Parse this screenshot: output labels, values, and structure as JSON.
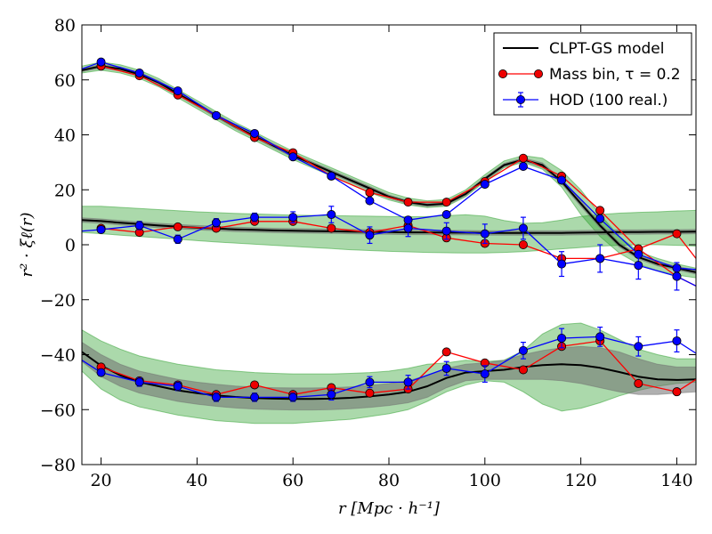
{
  "chart_data": {
    "type": "line",
    "xlabel": "r  [Mpc · h⁻¹]",
    "ylabel": "r² · ξℓ(r)",
    "xlim": [
      16,
      144
    ],
    "ylim": [
      -80,
      80
    ],
    "xticks": [
      20,
      40,
      60,
      80,
      100,
      120,
      140
    ],
    "yticks": [
      -80,
      -60,
      -40,
      -20,
      0,
      20,
      40,
      60,
      80
    ],
    "xtick_labels": [
      "20",
      "40",
      "60",
      "80",
      "100",
      "120",
      "140"
    ],
    "ytick_labels": [
      "−80",
      "−60",
      "−40",
      "−20",
      "0",
      "20",
      "40",
      "60",
      "80"
    ],
    "grid": false,
    "legend_position": "top-right",
    "legend": [
      {
        "key": "model",
        "label": "CLPT-GS model",
        "style": "line",
        "color": "#000000"
      },
      {
        "key": "mass",
        "label": "Mass bin, τ = 0.2",
        "style": "marker-line",
        "color": "#ff0000"
      },
      {
        "key": "hod",
        "label": "HOD (100 real.)",
        "style": "errorbar",
        "color": "#0000ff"
      }
    ],
    "colors": {
      "model": "#000000",
      "mass": "#ff0000",
      "mass_marker": "#ee0000",
      "hod": "#0000ff",
      "band_green": "#2ca02c",
      "band_grey": "#707070"
    },
    "model": {
      "x": [
        16,
        20,
        24,
        28,
        32,
        36,
        40,
        44,
        48,
        52,
        56,
        60,
        64,
        68,
        72,
        76,
        80,
        84,
        88,
        92,
        96,
        100,
        104,
        108,
        112,
        116,
        120,
        124,
        128,
        132,
        136,
        140,
        144
      ],
      "monopole": [
        63.5,
        65,
        64,
        62,
        59,
        55,
        51,
        47,
        43,
        39.5,
        36,
        32.5,
        29.5,
        26.5,
        23.5,
        20.5,
        17.5,
        15.5,
        14.5,
        15,
        18.5,
        24,
        29,
        31,
        29,
        23,
        15,
        7,
        0,
        -4.5,
        -7,
        -8.5,
        -10
      ],
      "quadrupole": [
        9,
        8.6,
        8,
        7.5,
        7,
        6.6,
        6.2,
        5.9,
        5.6,
        5.4,
        5.2,
        5.1,
        5,
        4.9,
        4.8,
        4.7,
        4.6,
        4.5,
        4.5,
        4.4,
        4.4,
        4.3,
        4.3,
        4.3,
        4.3,
        4.3,
        4.4,
        4.5,
        4.6,
        4.6,
        4.7,
        4.7,
        4.8
      ],
      "hexadecapole": [
        -39,
        -44,
        -47.5,
        -50,
        -51.5,
        -53,
        -54,
        -54.8,
        -55.4,
        -55.8,
        -56,
        -56.1,
        -56.1,
        -56,
        -55.7,
        -55.2,
        -54.5,
        -53.5,
        -51.5,
        -48.5,
        -46.5,
        -46,
        -45.5,
        -44.5,
        -43.8,
        -43.5,
        -43.8,
        -44.8,
        -46.3,
        -48,
        -49,
        -49.2,
        -49
      ]
    },
    "bands": {
      "green": {
        "monopole": {
          "x": [
            16,
            20,
            24,
            28,
            32,
            36,
            40,
            44,
            48,
            52,
            56,
            60,
            64,
            68,
            72,
            76,
            80,
            84,
            88,
            92,
            96,
            100,
            104,
            108,
            112,
            116,
            120,
            124,
            128,
            132,
            136,
            140,
            144
          ],
          "low": [
            62.5,
            63.5,
            62.5,
            60.5,
            57.5,
            53.5,
            49.5,
            45.5,
            41.5,
            38,
            34.5,
            31,
            28,
            25,
            22,
            19,
            16.3,
            14.5,
            13.5,
            14,
            17.5,
            23,
            28,
            30,
            27.5,
            21,
            11,
            3,
            -3,
            -7,
            -9.5,
            -11,
            -12
          ],
          "high": [
            65,
            66.5,
            65.5,
            63.5,
            60.5,
            56.5,
            52.5,
            48.5,
            44.5,
            41,
            37.5,
            34,
            31,
            28,
            25,
            22,
            19,
            17,
            16,
            16.5,
            20,
            25.5,
            30.5,
            32.5,
            31.5,
            27,
            20,
            11,
            3,
            -2.5,
            -5,
            -7,
            -8.5
          ]
        },
        "quadrupole": {
          "x": [
            16,
            20,
            24,
            28,
            32,
            36,
            40,
            44,
            48,
            52,
            56,
            60,
            64,
            68,
            72,
            76,
            80,
            84,
            88,
            92,
            96,
            100,
            104,
            108,
            112,
            116,
            120,
            124,
            128,
            132,
            136,
            140,
            144
          ],
          "low": [
            4.5,
            4,
            3.5,
            3,
            2.5,
            2,
            1.5,
            1,
            0.6,
            0.2,
            -0.2,
            -0.6,
            -1,
            -1.4,
            -1.8,
            -2.1,
            -2.4,
            -2.6,
            -2.8,
            -2.9,
            -3,
            -3,
            -2.8,
            -2.5,
            -2,
            -1.5,
            -1,
            -0.5,
            -0.2,
            0,
            0,
            -0.2,
            -0.5
          ],
          "high": [
            14,
            14,
            13.6,
            13.2,
            12.8,
            12.4,
            12,
            11.7,
            11.4,
            11.2,
            11,
            10.8,
            10.7,
            10.6,
            10.5,
            10.4,
            10.3,
            10.2,
            10.3,
            10.6,
            10.9,
            10.4,
            8.8,
            7.8,
            8,
            9,
            10.3,
            11,
            11.5,
            11.8,
            12,
            12.3,
            12.5
          ]
        },
        "hexadecapole": {
          "x": [
            16,
            20,
            24,
            28,
            32,
            36,
            40,
            44,
            48,
            52,
            56,
            60,
            64,
            68,
            72,
            76,
            80,
            84,
            88,
            92,
            96,
            100,
            104,
            108,
            112,
            116,
            120,
            124,
            128,
            132,
            136,
            140,
            144
          ],
          "low": [
            -46,
            -52.5,
            -56.5,
            -59,
            -60.5,
            -62,
            -63,
            -64,
            -64.5,
            -65,
            -65,
            -65,
            -64.5,
            -64,
            -63.5,
            -62.5,
            -61.5,
            -60,
            -57,
            -53.5,
            -51,
            -49.5,
            -50,
            -53.5,
            -58,
            -60.5,
            -59.5,
            -57.5,
            -55,
            -53,
            -51.5,
            -50.5,
            -50
          ],
          "high": [
            -31,
            -35,
            -38,
            -40.5,
            -42,
            -43.5,
            -44.5,
            -45.5,
            -46,
            -46.5,
            -46.8,
            -47,
            -47,
            -47,
            -46.8,
            -46.5,
            -46,
            -45,
            -43.5,
            -43,
            -42,
            -42.5,
            -42,
            -38.5,
            -32.5,
            -29,
            -28.5,
            -31,
            -34.5,
            -38,
            -40,
            -41.5,
            -41.5
          ]
        }
      },
      "grey": {
        "monopole": {
          "x": [
            16,
            20,
            24,
            28,
            32,
            36,
            40,
            44,
            48,
            52,
            56,
            60,
            64,
            68,
            72,
            76,
            80,
            84,
            88,
            92,
            96,
            100,
            104,
            108,
            112,
            116,
            120,
            124,
            128,
            132,
            136,
            140,
            144
          ],
          "low": [
            63,
            64.3,
            63.3,
            61.3,
            58.3,
            54.3,
            50.3,
            46.3,
            42.3,
            38.8,
            35.3,
            31.8,
            28.8,
            25.8,
            22.8,
            19.8,
            16.9,
            14.9,
            13.9,
            14.4,
            17.9,
            23.4,
            28.4,
            30.4,
            28.2,
            22.2,
            14,
            6.2,
            -0.8,
            -5.2,
            -7.7,
            -9.2,
            -10.7
          ],
          "high": [
            64,
            65.7,
            64.7,
            62.7,
            59.7,
            55.7,
            51.7,
            47.7,
            43.7,
            40.2,
            36.7,
            33.2,
            30.2,
            27.2,
            24.2,
            21.2,
            18.1,
            16.1,
            15.1,
            15.6,
            19.1,
            24.6,
            29.6,
            31.6,
            29.8,
            23.8,
            16,
            7.8,
            0.8,
            -3.8,
            -6.3,
            -7.8,
            -9.3
          ]
        },
        "quadrupole": {
          "x": [
            16,
            20,
            24,
            28,
            32,
            36,
            40,
            44,
            48,
            52,
            56,
            60,
            64,
            68,
            72,
            76,
            80,
            84,
            88,
            92,
            96,
            100,
            104,
            108,
            112,
            116,
            120,
            124,
            128,
            132,
            136,
            140,
            144
          ],
          "low": [
            8.2,
            7.8,
            7.2,
            6.7,
            6.2,
            5.8,
            5.4,
            5.1,
            4.8,
            4.6,
            4.4,
            4.3,
            4.2,
            4.1,
            4,
            3.9,
            3.8,
            3.7,
            3.7,
            3.6,
            3.6,
            3.5,
            3.5,
            3.5,
            3.5,
            3.5,
            3.6,
            3.7,
            3.8,
            3.8,
            3.9,
            3.9,
            4
          ],
          "high": [
            9.8,
            9.4,
            8.8,
            8.3,
            7.8,
            7.4,
            7,
            6.7,
            6.4,
            6.2,
            6,
            5.9,
            5.8,
            5.7,
            5.6,
            5.5,
            5.4,
            5.3,
            5.3,
            5.2,
            5.2,
            5.1,
            5.1,
            5.1,
            5.1,
            5.1,
            5.2,
            5.3,
            5.4,
            5.4,
            5.5,
            5.5,
            5.6
          ]
        },
        "hexadecapole": {
          "x": [
            16,
            20,
            24,
            28,
            32,
            36,
            40,
            44,
            48,
            52,
            56,
            60,
            64,
            68,
            72,
            76,
            80,
            84,
            88,
            92,
            96,
            100,
            104,
            108,
            112,
            116,
            120,
            124,
            128,
            132,
            136,
            140,
            144
          ],
          "low": [
            -42.5,
            -48,
            -51.5,
            -54,
            -55.5,
            -57,
            -58,
            -58.8,
            -59.4,
            -59.8,
            -60,
            -60.1,
            -60.1,
            -60,
            -59.7,
            -59.2,
            -58.5,
            -57.5,
            -55.5,
            -52,
            -49.5,
            -49,
            -49,
            -49,
            -49,
            -49.5,
            -50.5,
            -52,
            -53.5,
            -54.5,
            -54.5,
            -54,
            -53.5
          ],
          "high": [
            -35.5,
            -40,
            -43.5,
            -46,
            -47.5,
            -49,
            -50,
            -50.8,
            -51.4,
            -51.8,
            -52,
            -52.1,
            -52.1,
            -52,
            -51.7,
            -51.2,
            -50.5,
            -49.5,
            -47.5,
            -45,
            -43.5,
            -43,
            -42,
            -40,
            -38.5,
            -37.5,
            -37,
            -37.5,
            -39,
            -41.5,
            -43.5,
            -44.5,
            -44.5
          ]
        }
      }
    },
    "mass_bin": {
      "x": [
        20,
        28,
        36,
        44,
        52,
        60,
        68,
        76,
        84,
        92,
        100,
        108,
        116,
        124,
        132,
        140,
        144
      ],
      "monopole": [
        65,
        61.5,
        54.5,
        47,
        39,
        33.5,
        25,
        19,
        15.5,
        15.5,
        23,
        31.5,
        25,
        12.5,
        -1.5,
        -11.5,
        -15
      ],
      "quadrupole": [
        6,
        4.5,
        6.5,
        6,
        8.5,
        8.5,
        6,
        4.5,
        7,
        2.5,
        0.5,
        0,
        -5,
        -5,
        -1.5,
        4,
        -5
      ],
      "hexadecapole": [
        -44.5,
        -49.5,
        -51,
        -54.5,
        -51,
        -54.5,
        -52,
        -54,
        -52.5,
        -39,
        -43,
        -45.5,
        -37,
        -35,
        -50.5,
        -53.5,
        -49
      ]
    },
    "hod": {
      "x": [
        16,
        20,
        28,
        36,
        44,
        52,
        60,
        68,
        76,
        84,
        92,
        100,
        108,
        116,
        124,
        132,
        140,
        144
      ],
      "monopole": [
        64,
        66.5,
        62.5,
        56,
        47,
        40.5,
        32,
        25,
        16,
        9,
        11,
        22,
        28.5,
        23.5,
        9.5,
        -3.5,
        -8.5,
        -9
      ],
      "monopole_err": [
        0,
        0.8,
        0.8,
        0.8,
        0.8,
        0.8,
        0.8,
        0.8,
        0.8,
        0.8,
        0.8,
        0.8,
        1,
        1,
        1,
        1,
        1,
        0
      ],
      "quadrupole": [
        5,
        5.5,
        7,
        2,
        8,
        10,
        10,
        11,
        3.5,
        6,
        5,
        4,
        6,
        -7,
        -5,
        -7.5,
        -11.5,
        -15
      ],
      "quadrupole_err": [
        0,
        1,
        1.5,
        1.5,
        1.5,
        1.5,
        2,
        3,
        3,
        3,
        3,
        3.5,
        4,
        4.5,
        5,
        5,
        5,
        0
      ],
      "hexadecapole": [
        -42,
        -46.5,
        -50,
        -51.5,
        -55.5,
        -55.5,
        -55.5,
        -54.5,
        -50,
        -50,
        -45,
        -47,
        -38.5,
        -34,
        -33.5,
        -37,
        -35,
        -39.5
      ],
      "hexadecapole_err": [
        0,
        1.2,
        1.5,
        1.5,
        1.5,
        1.5,
        1.5,
        2,
        2,
        2.5,
        2.5,
        3,
        3,
        3.5,
        3.5,
        3.5,
        4,
        0
      ]
    }
  }
}
